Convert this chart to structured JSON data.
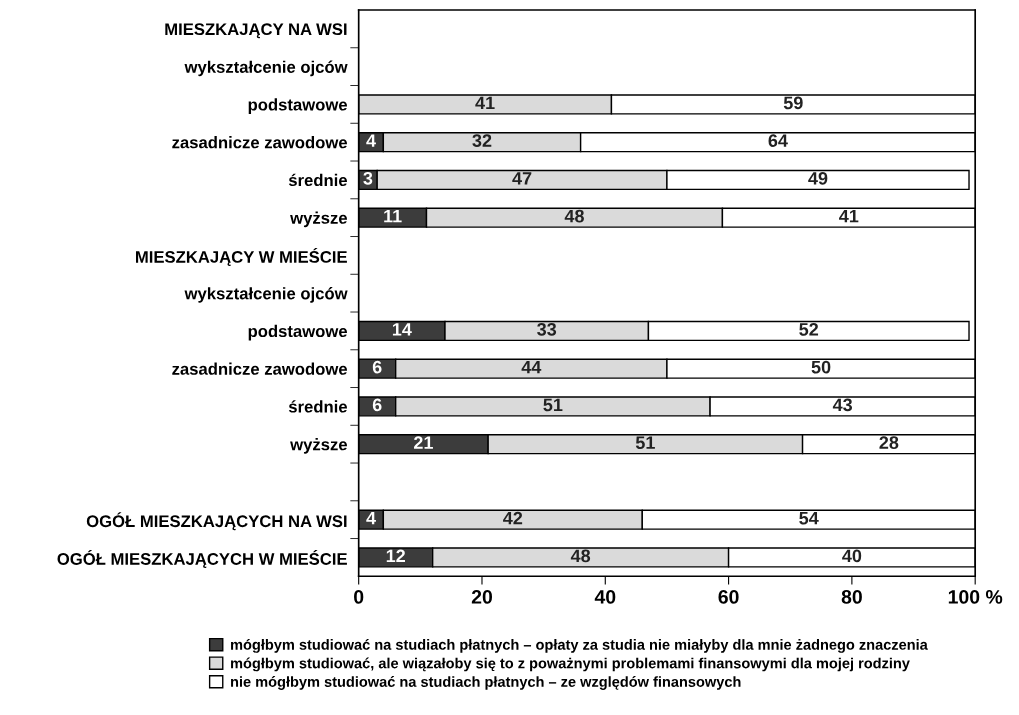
{
  "chart_data": {
    "type": "bar",
    "orientation": "horizontal",
    "stacked": true,
    "categories": [
      "MIESZKAJĄCY NA WSI",
      "wykształcenie ojców",
      "podstawowe",
      "zasadnicze zawodowe",
      "średnie",
      "wyższe",
      "MIESZKAJĄCY W MIEŚCIE",
      "wykształcenie ojców",
      "podstawowe",
      "zasadnicze zawodowe",
      "średnie",
      "wyższe",
      null,
      "OGÓŁ MIESZKAJĄCYCH NA WSI",
      "OGÓŁ MIESZKAJĄCYCH W MIEŚCIE"
    ],
    "series": [
      {
        "name": "mógłbym studiować na studiach płatnych – opłaty za studia nie miałyby dla mnie żadnego znaczenia",
        "color": "#3c3c3c",
        "values": [
          null,
          null,
          0,
          4,
          3,
          11,
          null,
          null,
          14,
          6,
          6,
          21,
          null,
          4,
          12
        ],
        "value_labels": [
          null,
          null,
          null,
          "4",
          "3",
          "11",
          null,
          null,
          "14",
          "6",
          "6",
          "21",
          null,
          "4",
          "12"
        ]
      },
      {
        "name": "mógłbym studiować, ale wiązałoby się to z poważnymi problemami finansowymi dla mojej rodziny",
        "color": "#dadada",
        "values": [
          null,
          null,
          41,
          32,
          47,
          48,
          null,
          null,
          33,
          44,
          51,
          51,
          null,
          42,
          48
        ],
        "value_labels": [
          null,
          null,
          "41",
          "32",
          "47",
          "48",
          null,
          null,
          "33",
          "44",
          "51",
          "51",
          null,
          "42",
          "48"
        ]
      },
      {
        "name": "nie mógłbym studiować na studiach płatnych – ze względów finansowych",
        "color": "#ffffff",
        "values": [
          null,
          null,
          59,
          64,
          49,
          41,
          null,
          null,
          52,
          50,
          43,
          28,
          null,
          54,
          40
        ],
        "value_labels": [
          null,
          null,
          "59",
          "64",
          "49",
          "41",
          null,
          null,
          "52",
          "50",
          "43",
          "28",
          null,
          "54",
          "40"
        ]
      }
    ],
    "xlim": [
      0,
      100
    ],
    "xticks": [
      0,
      20,
      40,
      60,
      80,
      {
        "value": 100,
        "label": "100 %"
      }
    ],
    "grid": false,
    "legend": "bottom"
  }
}
